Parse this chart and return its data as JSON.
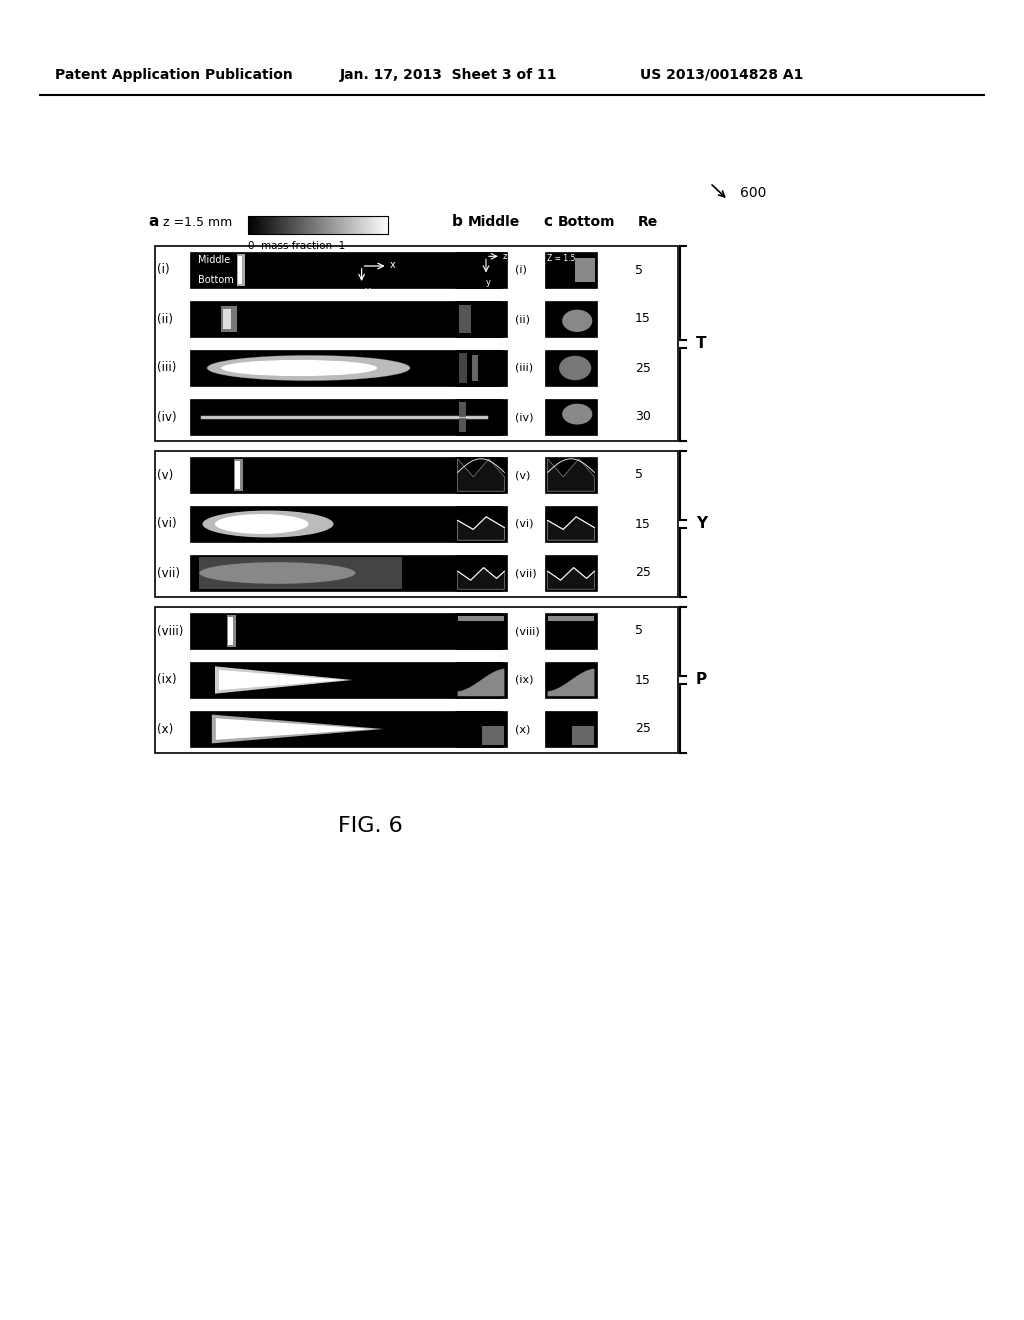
{
  "header_left": "Patent Application Publication",
  "header_mid": "Jan. 17, 2013  Sheet 3 of 11",
  "header_right": "US 2013/0014828 A1",
  "fig_label": "FIG. 6",
  "ref_number": "600",
  "col_a_label": "a",
  "col_a_sublabel": "z =1.5 mm",
  "colorbar_label": "0  mass fraction  1",
  "col_b_label": "b",
  "col_b_sublabel": "Middle",
  "col_c_label": "c",
  "col_c_sublabel": "Bottom",
  "col_re_label": "Re",
  "group_T_label": "T",
  "group_Y_label": "Y",
  "group_P_label": "P",
  "rows_T": [
    "(i)",
    "(ii)",
    "(iii)",
    "(iv)"
  ],
  "rows_Y": [
    "(v)",
    "(vi)",
    "(vii)"
  ],
  "rows_P": [
    "(viii)",
    "(ix)",
    "(x)"
  ],
  "re_T": [
    "5",
    "15",
    "25",
    "30"
  ],
  "re_Y": [
    "5",
    "15",
    "25"
  ],
  "re_P": [
    "5",
    "15",
    "25"
  ],
  "bg_color": "#ffffff",
  "panel_bg": "#000000",
  "text_color": "#000000"
}
